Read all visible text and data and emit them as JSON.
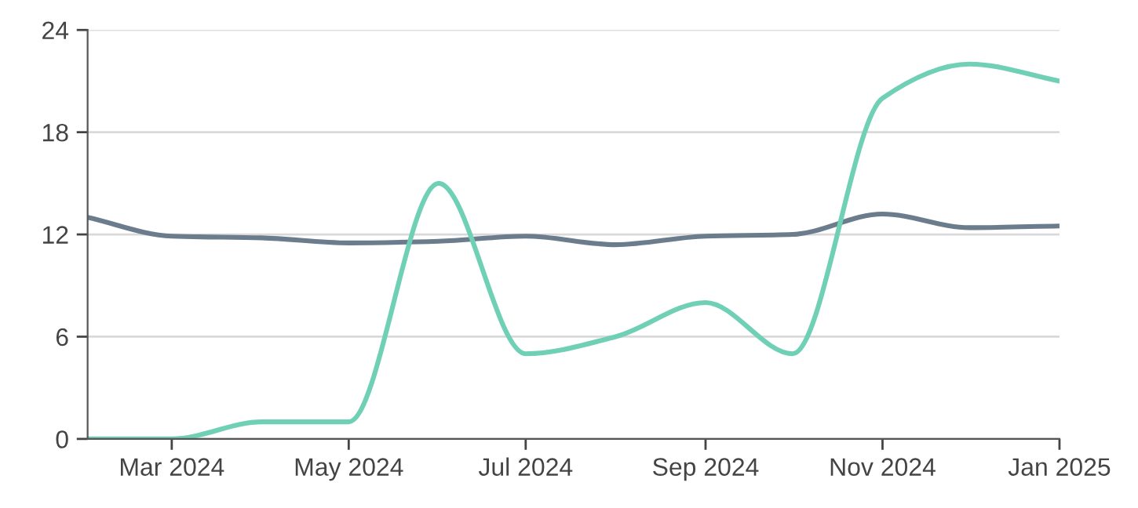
{
  "chart_data": {
    "type": "line",
    "x": [
      "2024-02",
      "2024-03",
      "2024-04",
      "2024-05",
      "2024-06",
      "2024-07",
      "2024-08",
      "2024-09",
      "2024-10",
      "2024-11",
      "2024-12",
      "2025-01"
    ],
    "series": [
      {
        "color": "#6b7d8c",
        "values": [
          13,
          11.9,
          11.8,
          11.5,
          11.6,
          11.9,
          11.4,
          11.9,
          12,
          13.2,
          12.4,
          12.5
        ]
      },
      {
        "color": "#6fd0b6",
        "values": [
          0,
          0,
          1,
          1,
          15,
          5,
          6,
          8,
          5,
          20,
          22,
          21
        ]
      }
    ],
    "xlim": [
      "2024-02",
      "2025-01"
    ],
    "xticks": [
      {
        "value": "2024-03",
        "label": "Mar 2024"
      },
      {
        "value": "2024-05",
        "label": "May 2024"
      },
      {
        "value": "2024-07",
        "label": "Jul 2024"
      },
      {
        "value": "2024-09",
        "label": "Sep 2024"
      },
      {
        "value": "2024-11",
        "label": "Nov 2024"
      },
      {
        "value": "2025-01",
        "label": "Jan 2025"
      }
    ],
    "ylim": [
      0,
      24
    ],
    "yticks": [
      0,
      6,
      12,
      18,
      24
    ],
    "grid": "y",
    "marker": "none",
    "line_style": "solid",
    "legend": false
  }
}
